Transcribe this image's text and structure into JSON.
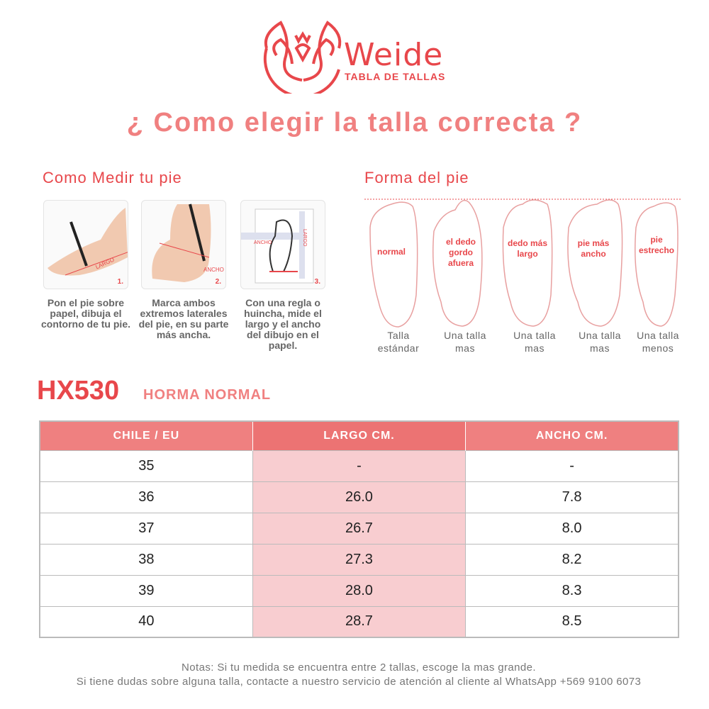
{
  "brand": {
    "name": "Weide",
    "subtitle": "TABLA DE TALLAS",
    "color": "#e8474b"
  },
  "title": "¿ Como elegir la talla correcta ?",
  "measure": {
    "heading": "Como Medir tu pie",
    "steps": [
      {
        "num": "1.",
        "label": "LARGO",
        "text": "Pon el pie sobre papel, dibuja el contorno de tu pie."
      },
      {
        "num": "2.",
        "label": "ANCHO",
        "text": "Marca ambos extremos laterales del pie, en su parte más ancha."
      },
      {
        "num": "3.",
        "label": "ANCHO",
        "label2": "LARGO",
        "text": "Con una regla o huincha, mide el largo y el ancho del dibujo en el papel."
      }
    ]
  },
  "shape": {
    "heading": "Forma del pie",
    "feet": [
      {
        "inside": "normal",
        "below": "Talla estándar"
      },
      {
        "inside": "el dedo gordo afuera",
        "below": "Una talla mas"
      },
      {
        "inside": "dedo más largo",
        "below": "Una talla mas"
      },
      {
        "inside": "pie más ancho",
        "below": "Una talla mas"
      },
      {
        "inside": "pie estrecho",
        "below": "Una talla menos"
      }
    ]
  },
  "model": {
    "code": "HX530",
    "last": "HORMA NORMAL"
  },
  "table": {
    "headers": [
      "CHILE / EU",
      "LARGO CM.",
      "ANCHO CM."
    ],
    "rows": [
      [
        "35",
        "-",
        "-"
      ],
      [
        "36",
        "26.0",
        "7.8"
      ],
      [
        "37",
        "26.7",
        "8.0"
      ],
      [
        "38",
        "27.3",
        "8.2"
      ],
      [
        "39",
        "28.0",
        "8.3"
      ],
      [
        "40",
        "28.7",
        "8.5"
      ]
    ],
    "header_color": "#ef8080",
    "highlight_color": "#f8cdd0"
  },
  "notes": [
    "Notas: Si tu medida se encuentra entre 2 tallas, escoge la mas grande.",
    "Si tiene dudas sobre alguna talla, contacte a nuestro servicio de atención al cliente al WhatsApp +569 9100 6073"
  ]
}
